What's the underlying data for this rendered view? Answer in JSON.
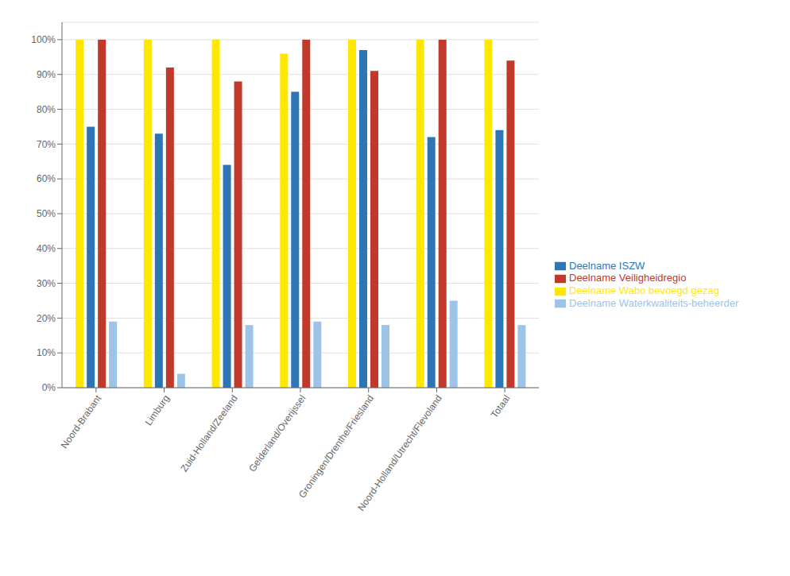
{
  "chart_data": {
    "type": "bar",
    "categories": [
      "Noord-Brabant",
      "Limburg",
      "Zuid-Holland/Zeeland",
      "Gelderland/Overijssel",
      "Groningen/Drenthe/Friesland",
      "Noord-Holland/Utrecht/Flevoland",
      "Totaal"
    ],
    "series": [
      {
        "name": "Deelname Wabo bevoegd gezag",
        "color": "#FFE800",
        "values": [
          1.0,
          1.0,
          1.0,
          0.96,
          1.0,
          1.0,
          1.0
        ]
      },
      {
        "name": "Deelname ISZW",
        "color": "#2E75B6",
        "values": [
          0.75,
          0.73,
          0.64,
          0.85,
          0.97,
          0.72,
          0.74
        ]
      },
      {
        "name": "Deelname Veiligheidregio",
        "color": "#C0392B",
        "values": [
          1.0,
          0.92,
          0.88,
          1.0,
          0.91,
          1.0,
          0.94
        ]
      },
      {
        "name": "Deelname Waterkwaliteits-beheerder",
        "color": "#9DC3E6",
        "values": [
          0.19,
          0.04,
          0.18,
          0.19,
          0.18,
          0.25,
          0.18
        ]
      }
    ],
    "ylim": [
      0,
      1.05
    ],
    "yticks": [
      {
        "value": 0.0,
        "label": "0%"
      },
      {
        "value": 0.1,
        "label": "10%"
      },
      {
        "value": 0.2,
        "label": "20%"
      },
      {
        "value": 0.3,
        "label": "30%"
      },
      {
        "value": 0.4,
        "label": "40%"
      },
      {
        "value": 0.5,
        "label": "50%"
      },
      {
        "value": 0.6,
        "label": "60%"
      },
      {
        "value": 0.7,
        "label": "70%"
      },
      {
        "value": 0.8,
        "label": "80%"
      },
      {
        "value": 0.9,
        "label": "90%"
      },
      {
        "value": 1.0,
        "label": "100%"
      }
    ],
    "grid": true,
    "legend": "right"
  }
}
